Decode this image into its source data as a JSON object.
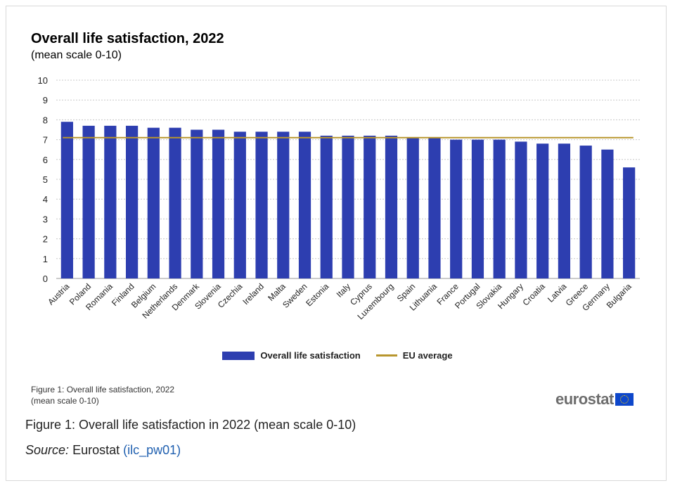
{
  "chart_data": {
    "type": "bar",
    "title": "Overall life satisfaction, 2022",
    "subtitle": "(mean scale 0-10)",
    "categories": [
      "Austria",
      "Poland",
      "Romania",
      "Finland",
      "Belgium",
      "Netherlands",
      "Denmark",
      "Slovenia",
      "Czechia",
      "Ireland",
      "Malta",
      "Sweden",
      "Estonia",
      "Italy",
      "Cyprus",
      "Luxembourg",
      "Spain",
      "Lithuania",
      "France",
      "Portugal",
      "Slovakia",
      "Hungary",
      "Croatia",
      "Latvia",
      "Greece",
      "Germany",
      "Bulgaria"
    ],
    "series": [
      {
        "name": "Overall life satisfaction",
        "values": [
          7.9,
          7.7,
          7.7,
          7.7,
          7.6,
          7.6,
          7.5,
          7.5,
          7.4,
          7.4,
          7.4,
          7.4,
          7.2,
          7.2,
          7.2,
          7.2,
          7.1,
          7.1,
          7.0,
          7.0,
          7.0,
          6.9,
          6.8,
          6.8,
          6.7,
          6.5,
          5.6
        ]
      }
    ],
    "reference_line": {
      "name": "EU average",
      "value": 7.1
    },
    "ylim": [
      0,
      10
    ],
    "yticks": [
      0,
      1,
      2,
      3,
      4,
      5,
      6,
      7,
      8,
      9,
      10
    ],
    "grid": true,
    "legend_position": "bottom",
    "colors": {
      "bar": "#2d3eb0",
      "reference": "#b8962e",
      "grid": "#c8c8c8"
    }
  },
  "figure_note": {
    "line1": "Figure 1: Overall life satisfaction, 2022",
    "line2": "(mean scale 0-10)"
  },
  "logo_text": "eurostat",
  "caption": "Figure 1: Overall life satisfaction in 2022 (mean scale 0-10)",
  "source": {
    "label": "Source:",
    "text": "Eurostat",
    "link": "(ilc_pw01)"
  }
}
